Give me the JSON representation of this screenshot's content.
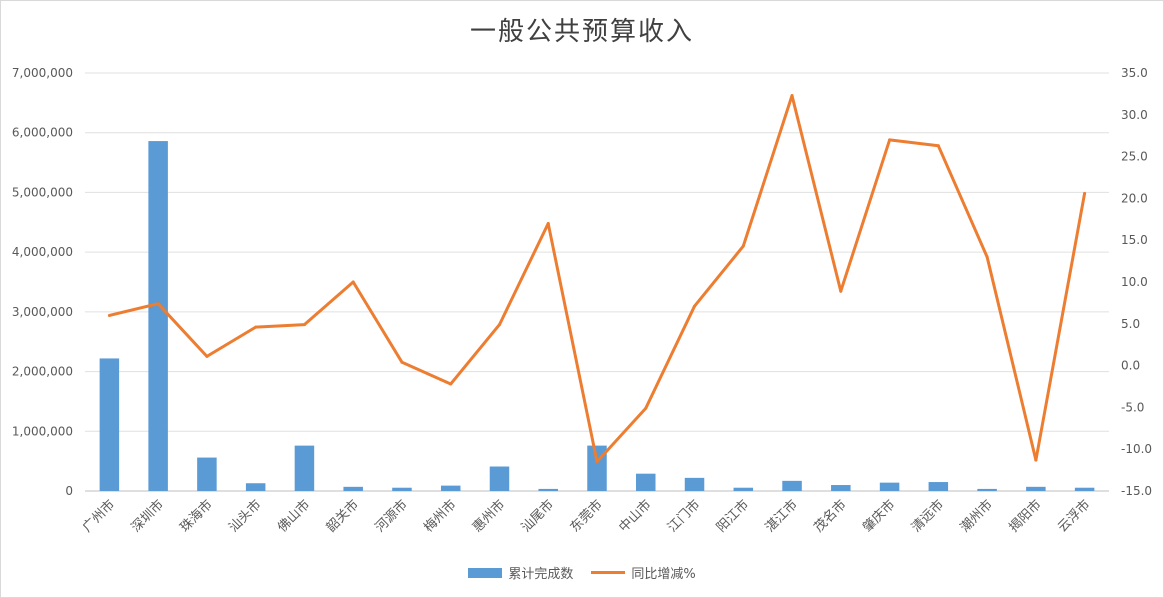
{
  "chart_data": {
    "type": "bar+line",
    "title": "一般公共预算收入",
    "categories": [
      "广州市",
      "深圳市",
      "珠海市",
      "汕头市",
      "佛山市",
      "韶关市",
      "河源市",
      "梅州市",
      "惠州市",
      "汕尾市",
      "东莞市",
      "中山市",
      "江门市",
      "阳江市",
      "湛江市",
      "茂名市",
      "肇庆市",
      "清远市",
      "潮州市",
      "揭阳市",
      "云浮市"
    ],
    "series": [
      {
        "name": "累计完成数",
        "type": "bar",
        "axis": "left",
        "color": "#5b9bd5",
        "values": [
          2220000,
          5860000,
          560000,
          130000,
          760000,
          70000,
          55000,
          90000,
          410000,
          35000,
          760000,
          290000,
          220000,
          55000,
          170000,
          100000,
          140000,
          150000,
          35000,
          70000,
          55000
        ]
      },
      {
        "name": "同比增减%",
        "type": "line",
        "axis": "right",
        "color": "#ed7d31",
        "values": [
          6.0,
          7.4,
          1.1,
          4.6,
          4.9,
          10.0,
          0.4,
          -2.2,
          4.9,
          17.0,
          -11.5,
          -5.1,
          7.1,
          14.3,
          32.3,
          8.9,
          27.0,
          26.3,
          13.0,
          -11.3,
          20.6
        ]
      }
    ],
    "y_left": {
      "min": 0,
      "max": 7000000,
      "ticks": [
        "0",
        "1,000,000",
        "2,000,000",
        "3,000,000",
        "4,000,000",
        "5,000,000",
        "6,000,000",
        "7,000,000"
      ]
    },
    "y_right": {
      "min": -15,
      "max": 35,
      "ticks": [
        "-15.0",
        "-10.0",
        "-5.0",
        "0.0",
        "5.0",
        "10.0",
        "15.0",
        "20.0",
        "25.0",
        "30.0",
        "35.0"
      ]
    },
    "grid": true,
    "legend_position": "bottom"
  }
}
